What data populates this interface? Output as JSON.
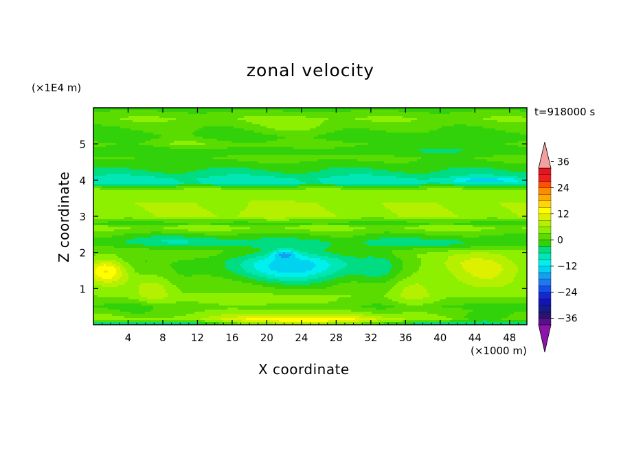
{
  "chart_data": {
    "type": "heatmap",
    "title": "zonal velocity",
    "xlabel": "X coordinate",
    "ylabel": "Z coordinate",
    "x_unit_label": "(×1000 m)",
    "y_unit_label": "(×1E4 m)",
    "time_label": "t=918000 s",
    "x_ticks": [
      4,
      8,
      12,
      16,
      20,
      24,
      28,
      32,
      36,
      40,
      44,
      48
    ],
    "y_ticks": [
      1,
      2,
      3,
      4,
      5
    ],
    "xlim": [
      0,
      50
    ],
    "ylim": [
      0,
      6
    ],
    "colorbar": {
      "levels": [
        -42,
        -39,
        -36,
        -33,
        -30,
        -27,
        -24,
        -21,
        -18,
        -15,
        -12,
        -9,
        -6,
        -3,
        0,
        3,
        6,
        9,
        12,
        15,
        18,
        21,
        24,
        27,
        30,
        33,
        36,
        39,
        42
      ],
      "colors": [
        "#5a0f8c",
        "#26146e",
        "#141c8c",
        "#1414b4",
        "#1428d2",
        "#1450e6",
        "#1e78f0",
        "#14a0f0",
        "#00d2f0",
        "#00f0f0",
        "#00e6b4",
        "#00dc82",
        "#32d20a",
        "#5adc00",
        "#8cf000",
        "#b4f000",
        "#dcf000",
        "#ffff00",
        "#ffd700",
        "#ffaa00",
        "#ff8c00",
        "#ff5000",
        "#f01e1e",
        "#e6141e"
      ],
      "over_color": "#f5a0a0",
      "under_color": "#8c14aa",
      "tick_labels": [
        "36",
        "24",
        "12",
        "0",
        "-12",
        "-24",
        "-36"
      ],
      "tick_values": [
        36,
        24,
        12,
        0,
        -12,
        -24,
        -36
      ]
    },
    "features": [
      {
        "x": 5.5,
        "z": 0.4,
        "sx": 2.5,
        "sz": 0.25,
        "amp": -3
      },
      {
        "x": 24,
        "z": 0.1,
        "sx": 9,
        "sz": 0.18,
        "amp": 13
      },
      {
        "x": 20,
        "z": 0.55,
        "sx": 12,
        "sz": 0.25,
        "amp": 4
      },
      {
        "x": 45,
        "z": 0.2,
        "sx": 3,
        "sz": 0.15,
        "amp": -7
      },
      {
        "x": 23,
        "z": 1.65,
        "sx": 7.5,
        "sz": 0.55,
        "amp": -11
      },
      {
        "x": 24,
        "z": 1.7,
        "sx": 4.5,
        "sz": 0.35,
        "amp": -4
      },
      {
        "x": 22,
        "z": 1.95,
        "sx": 1.4,
        "sz": 0.13,
        "amp": -10
      },
      {
        "x": 33,
        "z": 1.5,
        "sx": 2.5,
        "sz": 0.9,
        "amp": -3
      },
      {
        "x": 1.5,
        "z": 1.5,
        "sx": 2.5,
        "sz": 0.35,
        "amp": 14
      },
      {
        "x": 46,
        "z": 1.55,
        "sx": 5,
        "sz": 0.45,
        "amp": 10
      },
      {
        "x": 43,
        "z": 1.8,
        "sx": 4,
        "sz": 0.25,
        "amp": 4
      },
      {
        "x": 7,
        "z": 1.0,
        "sx": 2.2,
        "sz": 0.6,
        "amp": 5
      },
      {
        "x": 37,
        "z": 1.0,
        "sx": 2.8,
        "sz": 0.75,
        "amp": 5
      },
      {
        "x": 24,
        "z": 1.9,
        "sx": 15,
        "sz": 0.22,
        "amp": 3
      },
      {
        "x": 10,
        "z": 2.3,
        "sx": 8,
        "sz": 0.2,
        "amp": -5
      },
      {
        "x": 40,
        "z": 2.25,
        "sx": 8,
        "sz": 0.2,
        "amp": -4
      },
      {
        "x": 45,
        "z": 4.0,
        "sx": 3.5,
        "sz": 0.05,
        "amp": -8
      },
      {
        "x": 20,
        "z": 3.0,
        "sx": 3,
        "sz": 0.2,
        "amp": 3
      },
      {
        "x": 8,
        "z": 4.8,
        "sx": 5,
        "sz": 0.3,
        "amp": -3
      },
      {
        "x": 40,
        "z": 4.9,
        "sx": 6,
        "sz": 0.3,
        "amp": -3
      },
      {
        "x": 24,
        "z": 5.5,
        "sx": 5,
        "sz": 0.25,
        "amp": 3
      },
      {
        "x": 10,
        "z": 5.0,
        "sx": 4,
        "sz": 0.2,
        "amp": 4
      }
    ]
  }
}
